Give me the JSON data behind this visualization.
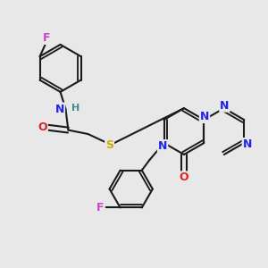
{
  "background_color": "#e8e8e8",
  "bond_color": "#1a1a1a",
  "bond_width": 1.5,
  "atom_colors": {
    "F": "#cc44cc",
    "N": "#2222ee",
    "H": "#448888",
    "O": "#dd2222",
    "S": "#ccaa00",
    "C": "#1a1a1a"
  },
  "font_size": 9,
  "figsize": [
    3.0,
    3.0
  ],
  "dpi": 100
}
